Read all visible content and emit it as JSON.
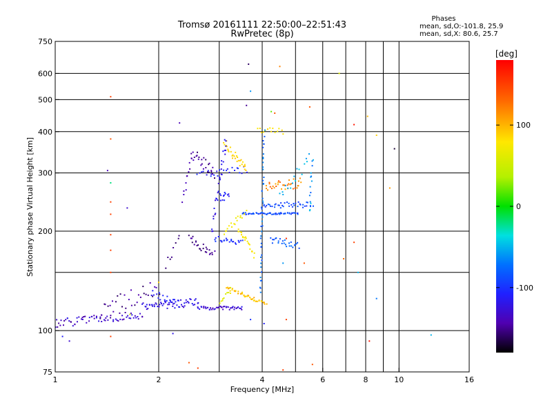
{
  "chart_data": {
    "type": "scatter",
    "title": "Tromsø 20161111 22:50:00–22:51:43",
    "subtitle": "RwPretec (8p)",
    "xlabel": "Frequency [MHz]",
    "ylabel": "Stationary phase Virtual Height [km]",
    "x_scale": "log",
    "y_scale": "log",
    "xlim": [
      1,
      16
    ],
    "ylim": [
      75,
      750
    ],
    "x_ticks": [
      1,
      2,
      4,
      6,
      8,
      10,
      16
    ],
    "x_tick_labels": [
      "1",
      "2",
      "4",
      "6",
      "8",
      "10",
      "16"
    ],
    "x_minor_grid": [
      3,
      5,
      7,
      9
    ],
    "y_ticks": [
      75,
      100,
      200,
      300,
      400,
      500,
      600,
      750
    ],
    "y_tick_labels": [
      "75",
      "100",
      "200",
      "300",
      "400",
      "500",
      "600",
      "750"
    ],
    "y_minor_grid": [
      150
    ],
    "grid": true,
    "phase_stats": {
      "title": "Phases",
      "o_line": "mean, sd,O:-101.8, 25.9",
      "x_line": "mean, sd,X:  80.6, 25.7"
    },
    "colorbar": {
      "label": "[deg]",
      "range": [
        -180,
        180
      ],
      "ticks": [
        100,
        0,
        -100
      ],
      "tick_labels": [
        "100",
        "0",
        "-100"
      ]
    },
    "traces": [
      {
        "x": [
          1.0,
          1.8
        ],
        "y": [
          105,
          112
        ],
        "n": 70,
        "jitter": 0.03,
        "phase": [
          -115,
          -150
        ]
      },
      {
        "x": [
          1.8,
          2.6
        ],
        "y": [
          118,
          122
        ],
        "n": 60,
        "jitter": 0.03,
        "phase": [
          -110,
          -130
        ]
      },
      {
        "x": [
          2.6,
          3.5
        ],
        "y": [
          117,
          117
        ],
        "n": 45,
        "jitter": 0.012,
        "phase": [
          -115,
          -140
        ]
      },
      {
        "x": [
          3.15,
          4.1
        ],
        "y": [
          135,
          120
        ],
        "n": 45,
        "jitter": 0.012,
        "phase": [
          80,
          110
        ]
      },
      {
        "x": [
          3.0,
          3.25
        ],
        "y": [
          122,
          133
        ],
        "n": 10,
        "jitter": 0.02,
        "phase": [
          55,
          70
        ]
      },
      {
        "x": [
          1.35,
          2.0
        ],
        "y": [
          115,
          135
        ],
        "n": 30,
        "jitter": 0.06,
        "phase": [
          -140,
          -160
        ]
      },
      {
        "x": [
          1.9,
          2.3
        ],
        "y": [
          130,
          120
        ],
        "n": 18,
        "jitter": 0.03,
        "phase": [
          -105,
          -120
        ]
      },
      {
        "x": [
          2.1,
          2.3
        ],
        "y": [
          158,
          190
        ],
        "n": 8,
        "jitter": 0.03,
        "phase": [
          -150,
          -160
        ]
      },
      {
        "x": [
          2.45,
          2.9
        ],
        "y": [
          190,
          170
        ],
        "n": 25,
        "jitter": 0.03,
        "phase": [
          -140,
          -160
        ]
      },
      {
        "x": [
          2.5,
          2.9
        ],
        "y": [
          345,
          300
        ],
        "n": 25,
        "jitter": 0.04,
        "phase": [
          -140,
          -160
        ]
      },
      {
        "x": [
          2.35,
          2.5
        ],
        "y": [
          250,
          330
        ],
        "n": 12,
        "jitter": 0.04,
        "phase": [
          -130,
          -150
        ]
      },
      {
        "x": [
          2.6,
          3.6
        ],
        "y": [
          298,
          305
        ],
        "n": 25,
        "jitter": 0.03,
        "phase": [
          -120,
          -100
        ]
      },
      {
        "x": [
          3.1,
          3.6
        ],
        "y": [
          370,
          305
        ],
        "n": 30,
        "jitter": 0.03,
        "phase": [
          80,
          95
        ]
      },
      {
        "x": [
          3.0,
          3.2
        ],
        "y": [
          255,
          255
        ],
        "n": 12,
        "jitter": 0.03,
        "phase": [
          -120,
          -100
        ]
      },
      {
        "x": [
          3.1,
          3.6
        ],
        "y": [
          200,
          230
        ],
        "n": 18,
        "jitter": 0.025,
        "phase": [
          65,
          80
        ]
      },
      {
        "x": [
          3.4,
          3.8
        ],
        "y": [
          205,
          170
        ],
        "n": 22,
        "jitter": 0.025,
        "phase": [
          70,
          85
        ]
      },
      {
        "x": [
          2.9,
          3.5
        ],
        "y": [
          190,
          185
        ],
        "n": 25,
        "jitter": 0.02,
        "phase": [
          -110,
          -95
        ]
      },
      {
        "x": [
          3.5,
          5.1
        ],
        "y": [
          226,
          226
        ],
        "n": 60,
        "jitter": 0.007,
        "phase": [
          -100,
          -80
        ]
      },
      {
        "x": [
          4.0,
          5.6
        ],
        "y": [
          240,
          240
        ],
        "n": 40,
        "jitter": 0.02,
        "phase": [
          -100,
          -80
        ]
      },
      {
        "x": [
          4.1,
          5.2
        ],
        "y": [
          272,
          280
        ],
        "n": 35,
        "jitter": 0.035,
        "phase": [
          100,
          140
        ]
      },
      {
        "x": [
          3.9,
          4.6
        ],
        "y": [
          405,
          400
        ],
        "n": 14,
        "jitter": 0.02,
        "phase": [
          75,
          90
        ]
      },
      {
        "x": [
          4.25,
          5.1
        ],
        "y": [
          188,
          180
        ],
        "n": 25,
        "jitter": 0.025,
        "phase": [
          -90,
          -70
        ]
      },
      {
        "x": [
          3.95,
          4.05
        ],
        "y": [
          130,
          400
        ],
        "n": 45,
        "jitter": 0.02,
        "phase": [
          -90,
          -60
        ]
      },
      {
        "x": [
          2.85,
          3.15
        ],
        "y": [
          200,
          380
        ],
        "n": 30,
        "jitter": 0.05,
        "phase": [
          -130,
          -110
        ]
      },
      {
        "x": [
          4.5,
          5.5
        ],
        "y": [
          255,
          330
        ],
        "n": 16,
        "jitter": 0.04,
        "phase": [
          -60,
          -40
        ]
      },
      {
        "x": [
          5.5,
          5.6
        ],
        "y": [
          230,
          330
        ],
        "n": 14,
        "jitter": 0.02,
        "phase": [
          -80,
          -40
        ]
      }
    ],
    "points": [
      {
        "x": 1.45,
        "y": 510,
        "phase": 150
      },
      {
        "x": 1.45,
        "y": 380,
        "phase": 140
      },
      {
        "x": 1.45,
        "y": 280,
        "phase": -20
      },
      {
        "x": 1.45,
        "y": 245,
        "phase": 150
      },
      {
        "x": 1.45,
        "y": 225,
        "phase": 150
      },
      {
        "x": 1.45,
        "y": 195,
        "phase": 150
      },
      {
        "x": 1.45,
        "y": 175,
        "phase": 150
      },
      {
        "x": 1.45,
        "y": 150,
        "phase": 150
      },
      {
        "x": 1.45,
        "y": 96,
        "phase": 150
      },
      {
        "x": 1.42,
        "y": 305,
        "phase": -140
      },
      {
        "x": 1.62,
        "y": 235,
        "phase": -130
      },
      {
        "x": 3.65,
        "y": 640,
        "phase": -160
      },
      {
        "x": 3.7,
        "y": 530,
        "phase": -60
      },
      {
        "x": 4.5,
        "y": 630,
        "phase": 120
      },
      {
        "x": 4.35,
        "y": 455,
        "phase": 140
      },
      {
        "x": 3.6,
        "y": 480,
        "phase": -150
      },
      {
        "x": 4.25,
        "y": 460,
        "phase": 20
      },
      {
        "x": 5.5,
        "y": 475,
        "phase": 140
      },
      {
        "x": 6.7,
        "y": 600,
        "phase": 60
      },
      {
        "x": 7.4,
        "y": 420,
        "phase": 170
      },
      {
        "x": 8.1,
        "y": 445,
        "phase": 100
      },
      {
        "x": 8.6,
        "y": 390,
        "phase": 90
      },
      {
        "x": 9.7,
        "y": 355,
        "phase": -170
      },
      {
        "x": 9.4,
        "y": 270,
        "phase": 110
      },
      {
        "x": 6.9,
        "y": 165,
        "phase": 130
      },
      {
        "x": 7.4,
        "y": 185,
        "phase": 150
      },
      {
        "x": 7.6,
        "y": 150,
        "phase": -50
      },
      {
        "x": 8.6,
        "y": 125,
        "phase": -70
      },
      {
        "x": 8.2,
        "y": 93,
        "phase": 170
      },
      {
        "x": 12.4,
        "y": 97,
        "phase": -50
      },
      {
        "x": 2.45,
        "y": 80,
        "phase": 140
      },
      {
        "x": 2.6,
        "y": 77,
        "phase": 150
      },
      {
        "x": 4.6,
        "y": 76,
        "phase": 150
      },
      {
        "x": 5.6,
        "y": 79,
        "phase": 140
      },
      {
        "x": 4.7,
        "y": 108,
        "phase": 150
      },
      {
        "x": 1.1,
        "y": 93,
        "phase": -130
      },
      {
        "x": 1.05,
        "y": 96,
        "phase": -110
      },
      {
        "x": 2.2,
        "y": 98,
        "phase": -120
      },
      {
        "x": 3.7,
        "y": 108,
        "phase": -100
      },
      {
        "x": 4.05,
        "y": 105,
        "phase": -110
      },
      {
        "x": 4.6,
        "y": 160,
        "phase": -60
      },
      {
        "x": 4.7,
        "y": 190,
        "phase": 160
      },
      {
        "x": 5.3,
        "y": 160,
        "phase": 140
      },
      {
        "x": 2.3,
        "y": 425,
        "phase": -140
      },
      {
        "x": 2.0,
        "y": 140,
        "phase": 90
      },
      {
        "x": 1.65,
        "y": 112,
        "phase": 40
      }
    ]
  }
}
